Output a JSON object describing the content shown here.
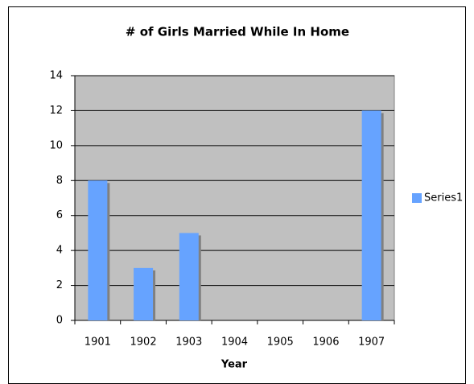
{
  "chart_data": {
    "type": "bar",
    "title": "# of Girls Married While In Home",
    "x_label": "Year",
    "categories": [
      "1901",
      "1902",
      "1903",
      "1904",
      "1905",
      "1906",
      "1907"
    ],
    "series": [
      {
        "name": "Series1",
        "color": "#66a3ff",
        "values": [
          8,
          3,
          5,
          0,
          0,
          0,
          12
        ]
      }
    ],
    "ylim": [
      0,
      14
    ],
    "yticks": [
      0,
      2,
      4,
      6,
      8,
      10,
      12,
      14
    ],
    "grid": true,
    "legend": "right"
  }
}
